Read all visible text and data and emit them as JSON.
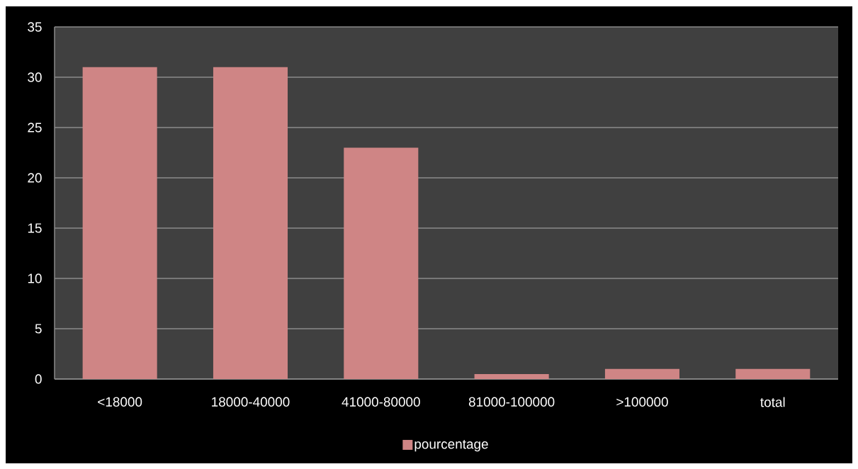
{
  "chart_data": {
    "type": "bar",
    "categories": [
      "<18000",
      "18000-40000",
      "41000-80000",
      "81000-100000",
      ">100000",
      "total"
    ],
    "series": [
      {
        "name": "pourcentage",
        "color": "#cf8585",
        "values": [
          31,
          31,
          23,
          0.5,
          1,
          1
        ]
      }
    ],
    "ylim": [
      0,
      35
    ],
    "yticks": [
      0,
      5,
      10,
      15,
      20,
      25,
      30,
      35
    ],
    "grid": "y",
    "legend": "bottom"
  }
}
